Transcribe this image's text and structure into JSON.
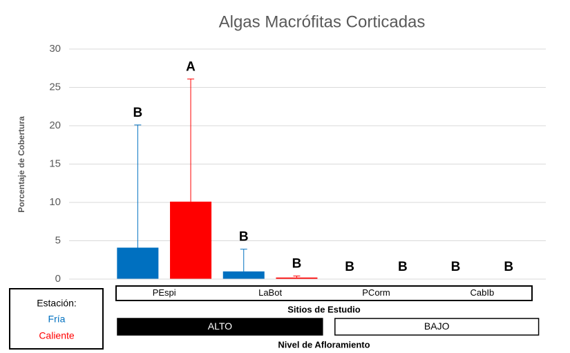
{
  "chart_data": {
    "type": "bar",
    "title": "Algas Macrófitas Corticadas",
    "y_label": "Porcentaje de Cobertura",
    "x_label": "Sitios de Estudio",
    "categories": [
      "PEspi",
      "LaBot",
      "PCorm",
      "CabIb"
    ],
    "series": [
      {
        "name": "Fría",
        "color": "#0070c0",
        "values": [
          4.1,
          1.0,
          0,
          0
        ],
        "errors": [
          16.0,
          2.9,
          0,
          0
        ],
        "significance": [
          "B",
          "B",
          "B",
          "B"
        ]
      },
      {
        "name": "Caliente",
        "color": "#ff0000",
        "values": [
          10.1,
          0.2,
          0,
          0
        ],
        "errors": [
          16.0,
          0.2,
          0,
          0
        ],
        "significance": [
          "A",
          "B",
          "B",
          "B"
        ]
      }
    ],
    "legend_title": "Estación:",
    "groups_label": "Nivel de Afloramiento",
    "groups": [
      {
        "label": "ALTO",
        "fill": "#000000",
        "text_color": "#ffffff"
      },
      {
        "label": "BAJO",
        "fill": "#ffffff",
        "text_color": "#000000"
      }
    ],
    "ylim": [
      0,
      30
    ],
    "yticks": [
      0,
      5,
      10,
      15,
      20,
      25,
      30
    ],
    "grid": true
  }
}
